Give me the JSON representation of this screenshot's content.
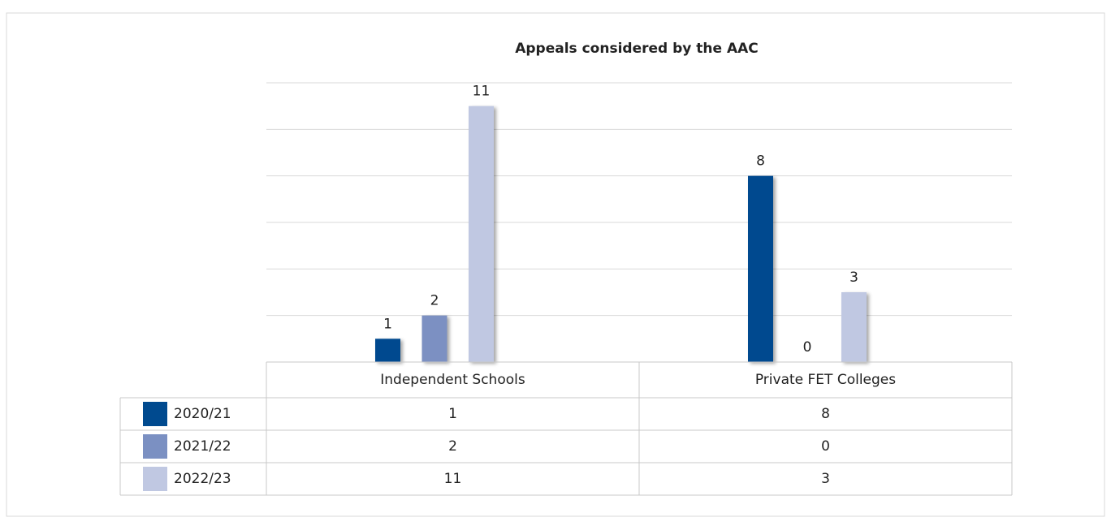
{
  "chart_data": {
    "type": "bar",
    "title": "Appeals considered by the AAC",
    "categories": [
      "Independent Schools",
      "Private FET Colleges"
    ],
    "series": [
      {
        "name": "2020/21",
        "color": "#004a8f",
        "values": [
          1,
          8
        ]
      },
      {
        "name": "2021/22",
        "color": "#7b90c2",
        "values": [
          2,
          0
        ]
      },
      {
        "name": "2022/23",
        "color": "#c0c8e2",
        "values": [
          11,
          3
        ]
      }
    ],
    "ylim": [
      0,
      12
    ],
    "yticks": [
      0,
      2,
      4,
      6,
      8,
      10,
      12
    ],
    "grid": true
  }
}
